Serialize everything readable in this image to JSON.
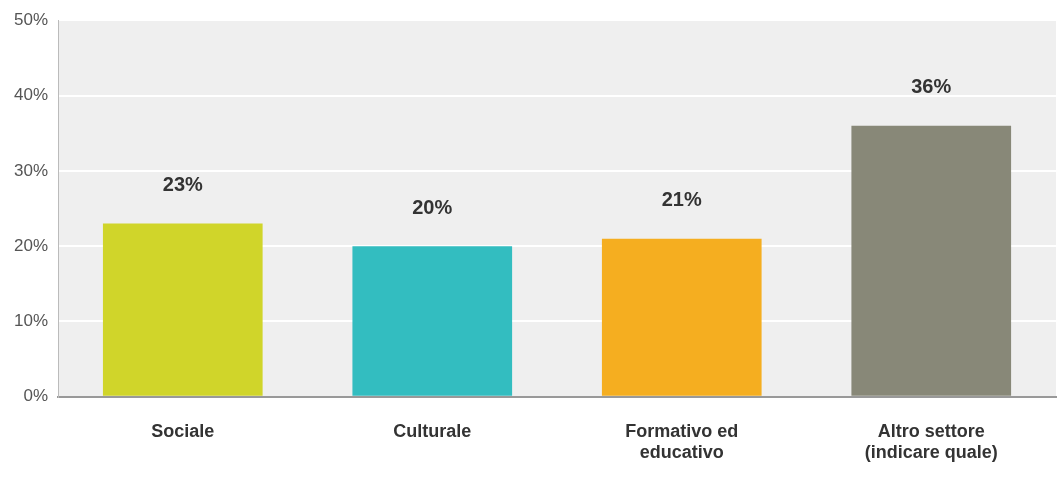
{
  "chart_data": {
    "type": "bar",
    "categories": [
      "Sociale",
      "Culturale",
      "Formativo ed educativo",
      "Altro settore (indicare quale)"
    ],
    "values": [
      23,
      20,
      21,
      36
    ],
    "colors": [
      "#d0d52a",
      "#33bdc0",
      "#f5ae20",
      "#888878"
    ],
    "ylim": [
      0,
      50
    ],
    "yticks": [
      {
        "value": 0,
        "label": "0%"
      },
      {
        "value": 10,
        "label": "10%"
      },
      {
        "value": 20,
        "label": "20%"
      },
      {
        "value": 30,
        "label": "30%"
      },
      {
        "value": 40,
        "label": "40%"
      },
      {
        "value": 50,
        "label": "50%"
      }
    ],
    "value_labels": [
      "23%",
      "20%",
      "21%",
      "36%"
    ],
    "grid": "y"
  }
}
